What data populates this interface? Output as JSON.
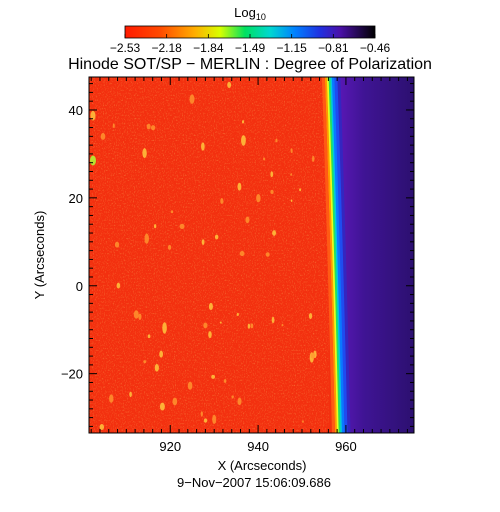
{
  "chart_data": {
    "type": "heatmap",
    "title": "Hinode SOT/SP − MERLIN : Degree of Polarization",
    "xlabel": "X (Arcseconds)",
    "ylabel": "Y (Arcseconds)",
    "xlim": [
      901.5,
      975.5
    ],
    "ylim": [
      -33.5,
      47.5
    ],
    "xticks": [
      920,
      940,
      960
    ],
    "yticks": [
      -20,
      0,
      20,
      40
    ],
    "colorbar": {
      "label": "Log",
      "label_subscript": "10",
      "ticks": [
        "−2.53",
        "−2.18",
        "−1.84",
        "−1.49",
        "−1.15",
        "−0.81",
        "−0.46"
      ],
      "range": [
        -2.53,
        -0.46
      ]
    },
    "limb": {
      "description": "limb edge transition",
      "x_at_top": 956.0,
      "x_at_bottom": 958.3,
      "disk_value": -2.45,
      "offlimb_value": -0.6
    },
    "footer": "9−Nov−2007 15:06:09.686"
  }
}
